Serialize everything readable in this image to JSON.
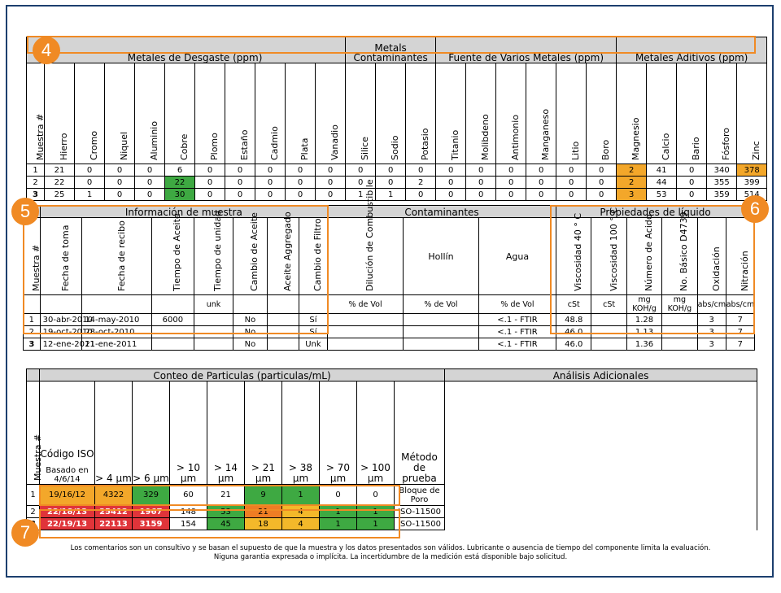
{
  "badges": [
    "4",
    "5",
    "6",
    "7"
  ],
  "metals": {
    "groups": [
      "Metales de Desgaste (ppm)",
      "Metals Contaminantes",
      "Fuente de Varios Metales (ppm)",
      "Metales Aditivos (ppm)"
    ],
    "sample_col": "Muestra #",
    "columns": [
      "Hierro",
      "Cromo",
      "Niquel",
      "Aluminio",
      "Cobre",
      "Plomo",
      "Estaño",
      "Cadmio",
      "Plata",
      "Vanadio",
      "Silice",
      "Sodio",
      "Potasio",
      "Titanio",
      "Molibdeno",
      "Antimonio",
      "Manganeso",
      "Litio",
      "Boro",
      "Magnesio",
      "Calcio",
      "Bario",
      "Fósforo",
      "Zinc"
    ],
    "rows": [
      {
        "sample": "1",
        "values": [
          "21",
          "0",
          "0",
          "0",
          "6",
          "0",
          "0",
          "0",
          "0",
          "0",
          "0",
          "0",
          "0",
          "0",
          "0",
          "0",
          "0",
          "0",
          "0",
          "2",
          "41",
          "0",
          "340",
          "378"
        ]
      },
      {
        "sample": "2",
        "values": [
          "22",
          "0",
          "0",
          "0",
          "22",
          "0",
          "0",
          "0",
          "0",
          "0",
          "0",
          "0",
          "2",
          "0",
          "0",
          "0",
          "0",
          "0",
          "0",
          "2",
          "44",
          "0",
          "355",
          "399"
        ]
      },
      {
        "sample": "3",
        "values": [
          "25",
          "1",
          "0",
          "0",
          "30",
          "0",
          "0",
          "0",
          "0",
          "0",
          "1",
          "1",
          "0",
          "0",
          "0",
          "0",
          "0",
          "0",
          "0",
          "3",
          "53",
          "0",
          "359",
          "514"
        ]
      }
    ]
  },
  "info": {
    "groups": [
      "Información de muestra",
      "Contaminantes",
      "Propiedades de líquido"
    ],
    "sample_col": "Muestra #",
    "columns": [
      "Fecha de toma",
      "Fecha de recibo",
      "Tiempo de Aceite",
      "Tiempo de unidad",
      "Cambio de Aceite",
      "Aceite Aggregado",
      "Cambio de Filtro",
      "Dilución de Combustib le",
      "Hollín",
      "Agua",
      "Viscosidad 40 ° C",
      "Viscosidad 100 ° C",
      "Número de Acido",
      "No. Básico D4739",
      "Oxidación",
      "Nitración"
    ],
    "units": [
      "",
      "",
      "",
      "unk",
      "",
      "",
      "",
      "% de Vol",
      "% de Vol",
      "% de Vol",
      "cSt",
      "cSt",
      "mg KOH/g",
      "mg KOH/g",
      "abs/cm",
      "abs/cm"
    ],
    "rows": [
      {
        "sample": "1",
        "values": [
          "30-abr-2010",
          "14-may-2010",
          "6000",
          "",
          "No",
          "",
          "Sí",
          "",
          "",
          "<.1 - FTIR",
          "48.8",
          "",
          "1.28",
          "",
          "3",
          "7"
        ]
      },
      {
        "sample": "2",
        "values": [
          "19-oct-2010",
          "28-oct-2010",
          "",
          "",
          "No",
          "",
          "Sí",
          "",
          "",
          "<.1 - FTIR",
          "46.0",
          "",
          "1.13",
          "",
          "3",
          "7"
        ]
      },
      {
        "sample": "3",
        "values": [
          "12-ene-2011",
          "21-ene-2011",
          "",
          "",
          "No",
          "",
          "Unk",
          "",
          "",
          "<.1 - FTIR",
          "46.0",
          "",
          "1.36",
          "",
          "3",
          "7"
        ]
      }
    ]
  },
  "particles": {
    "group": "Conteo de Particulas (particulas/mL)",
    "extra_group": "Análisis Adicionales",
    "sample_col": "Muestra #",
    "iso_header": "Código ISO",
    "iso_sub": "Basado en 4/6/14",
    "columns": [
      "> 4 µm",
      "> 6 µm",
      "> 10 µm",
      "> 14 µm",
      "> 21 µm",
      "> 38 µm",
      "> 70 µm",
      "> 100 µm"
    ],
    "method_col": "Método de prueba",
    "rows": [
      {
        "sample": "1",
        "iso": "19/16/12",
        "values": [
          "4322",
          "329",
          "60",
          "21",
          "9",
          "1",
          "0",
          "0"
        ],
        "method": "Bloque de Poro"
      },
      {
        "sample": "2",
        "iso": "22/18/13",
        "values": [
          "25412",
          "1967",
          "148",
          "53",
          "21",
          "4",
          "1",
          "1"
        ],
        "method": "ISO-11500"
      },
      {
        "sample": "3",
        "iso": "22/19/13",
        "values": [
          "22113",
          "3159",
          "154",
          "45",
          "18",
          "4",
          "1",
          "1"
        ],
        "method": "ISO-11500"
      }
    ]
  },
  "footer": {
    "line1": "Los comentarios son un consultivo y se basan el supuesto de que la muestra y los datos presentados son válidos. Lubricante o ausencia de tiempo del componente limita la evaluación.",
    "line2": "Niguna garantia expresada o implícita. La incertidumbre de la medición está disponible bajo solicitud."
  },
  "colors": {
    "orange": "#f3a72a",
    "green": "#3ea942",
    "red": "#e0343a",
    "dark_orange": "#ef7d24",
    "badge": "#f08a24",
    "frame": "#1c3f6e"
  }
}
